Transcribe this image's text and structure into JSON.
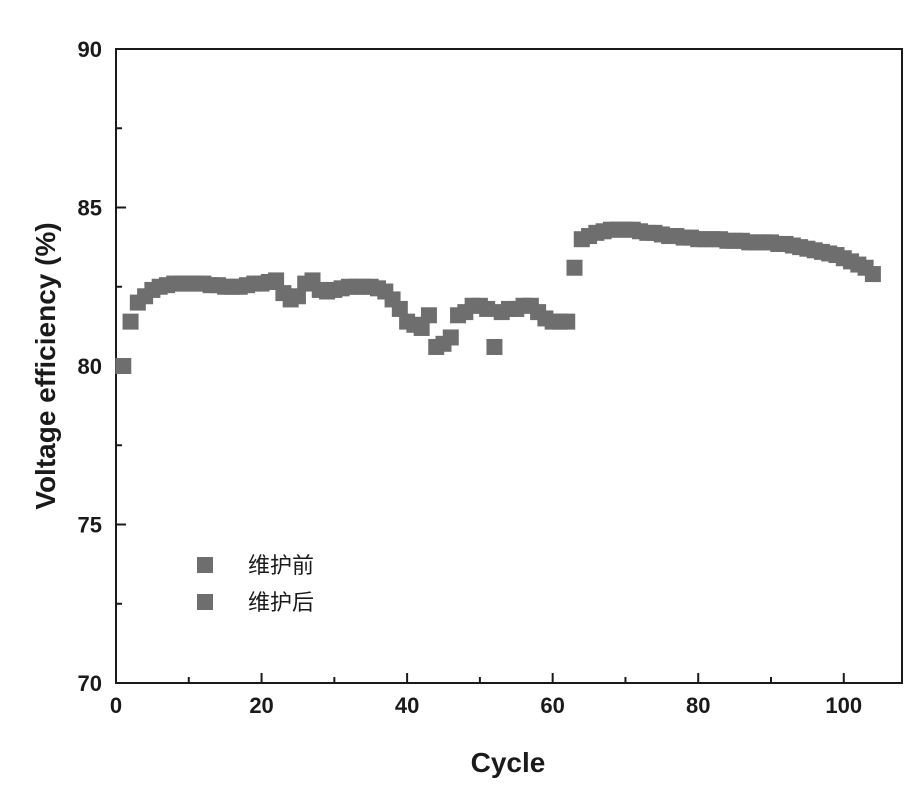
{
  "chart_data": {
    "type": "scatter",
    "xlabel": "Cycle",
    "ylabel": "Voltage efficiency (%)",
    "xlim": [
      0,
      108
    ],
    "ylim": [
      70,
      90
    ],
    "xticks": [
      0,
      20,
      40,
      60,
      80,
      100
    ],
    "yticks": [
      70,
      75,
      80,
      85,
      90
    ],
    "x_tick_labels": [
      "0",
      "20",
      "40",
      "60",
      "80",
      "100"
    ],
    "y_tick_labels": [
      "70",
      "75",
      "80",
      "85",
      "90"
    ],
    "marker": "square",
    "marker_color": "#6e6e6e",
    "grid": false,
    "legend_position": "lower-left",
    "series": [
      {
        "name": "维护前",
        "x": [
          1,
          2,
          3,
          4,
          5,
          6,
          7,
          8,
          9,
          10,
          11,
          12,
          13,
          14,
          15,
          16,
          17,
          18,
          19,
          20,
          21,
          22,
          23,
          24,
          25,
          26,
          27,
          28,
          29,
          30,
          31,
          32,
          33,
          34,
          35,
          36,
          37,
          38,
          39,
          40,
          41,
          42,
          43,
          44,
          45,
          46,
          47,
          48,
          49,
          50,
          51,
          52,
          53,
          54,
          55,
          56,
          57,
          58,
          59,
          60,
          61,
          62
        ],
        "y": [
          80.0,
          81.4,
          82.0,
          82.2,
          82.4,
          82.5,
          82.55,
          82.6,
          82.6,
          82.6,
          82.6,
          82.6,
          82.55,
          82.55,
          82.5,
          82.5,
          82.5,
          82.55,
          82.6,
          82.6,
          82.65,
          82.7,
          82.3,
          82.1,
          82.2,
          82.6,
          82.7,
          82.4,
          82.35,
          82.4,
          82.45,
          82.5,
          82.5,
          82.5,
          82.5,
          82.45,
          82.35,
          82.1,
          81.8,
          81.4,
          81.3,
          81.2,
          81.6,
          80.6,
          80.7,
          80.9,
          81.6,
          81.7,
          81.9,
          81.9,
          81.8,
          80.6,
          81.7,
          81.8,
          81.8,
          81.9,
          81.9,
          81.7,
          81.5,
          81.4,
          81.4,
          81.4
        ]
      },
      {
        "name": "维护后",
        "x": [
          63,
          64,
          65,
          66,
          67,
          68,
          69,
          70,
          71,
          72,
          73,
          74,
          75,
          76,
          77,
          78,
          79,
          80,
          81,
          82,
          83,
          84,
          85,
          86,
          87,
          88,
          89,
          90,
          91,
          92,
          93,
          94,
          95,
          96,
          97,
          98,
          99,
          100,
          101,
          102,
          103,
          104
        ],
        "y": [
          83.1,
          84.0,
          84.1,
          84.2,
          84.25,
          84.3,
          84.3,
          84.3,
          84.3,
          84.25,
          84.2,
          84.2,
          84.15,
          84.1,
          84.1,
          84.05,
          84.05,
          84.0,
          84.0,
          84.0,
          84.0,
          83.95,
          83.95,
          83.95,
          83.9,
          83.9,
          83.9,
          83.9,
          83.85,
          83.85,
          83.8,
          83.75,
          83.7,
          83.65,
          83.6,
          83.55,
          83.5,
          83.4,
          83.3,
          83.2,
          83.1,
          82.9
        ]
      }
    ]
  }
}
